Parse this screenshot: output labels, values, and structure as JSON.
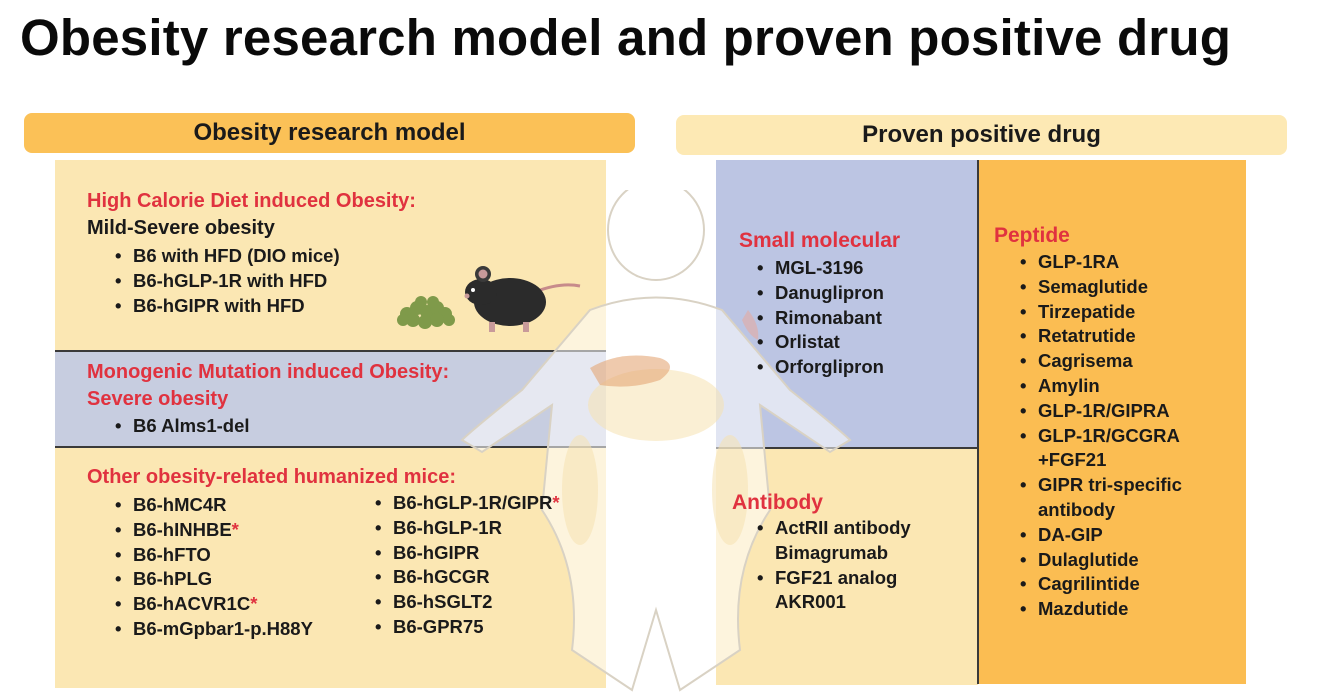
{
  "title": "Obesity research model and proven positive drug",
  "left_header": "Obesity research model",
  "right_header": "Proven positive drug",
  "hcd": {
    "heading": "High Calorie Diet induced Obesity:",
    "subheading": "Mild-Severe obesity",
    "items": [
      "B6 with HFD (DIO mice)",
      "B6-hGLP-1R with HFD",
      "B6-hGIPR with HFD"
    ]
  },
  "mono": {
    "heading": "Monogenic Mutation induced Obesity:",
    "subheading": "Severe obesity",
    "items": [
      "B6 Alms1-del"
    ]
  },
  "other": {
    "heading": "Other obesity-related humanized mice:",
    "col1": [
      {
        "text": "B6-hMC4R",
        "star": ""
      },
      {
        "text": "B6-hINHBE",
        "star": "*"
      },
      {
        "text": "B6-hFTO",
        "star": ""
      },
      {
        "text": "B6-hPLG",
        "star": ""
      },
      {
        "text": "B6-hACVR1C",
        "star": "*"
      },
      {
        "text": "B6-mGpbar1-p.H88Y",
        "star": ""
      }
    ],
    "col2": [
      {
        "text": "B6-hGLP-1R/GIPR",
        "star": "*"
      },
      {
        "text": "B6-hGLP-1R",
        "star": ""
      },
      {
        "text": "B6-hGIPR",
        "star": ""
      },
      {
        "text": "B6-hGCGR",
        "star": ""
      },
      {
        "text": "B6-hSGLT2",
        "star": ""
      },
      {
        "text": "B6-GPR75",
        "star": ""
      }
    ]
  },
  "small": {
    "heading": "Small molecular",
    "items": [
      "MGL-3196",
      "Danuglipron",
      "Rimonabant",
      "Orlistat",
      "Orforglipron"
    ]
  },
  "antibody": {
    "heading": "Antibody",
    "items": [
      {
        "line1": "ActRII  antibody",
        "line2": "Bimagrumab"
      },
      {
        "line1": "FGF21 analog",
        "line2": "AKR001"
      }
    ]
  },
  "peptide": {
    "heading": "Peptide",
    "items": [
      {
        "line1": "GLP-1RA",
        "line2": ""
      },
      {
        "line1": "Semaglutide",
        "line2": ""
      },
      {
        "line1": "Tirzepatide",
        "line2": ""
      },
      {
        "line1": "Retatrutide",
        "line2": ""
      },
      {
        "line1": "Cagrisema",
        "line2": ""
      },
      {
        "line1": "Amylin",
        "line2": ""
      },
      {
        "line1": "GLP-1R/GIPRA",
        "line2": ""
      },
      {
        "line1": "GLP-1R/GCGRA",
        "line2": "+FGF21"
      },
      {
        "line1": "GIPR tri-specific",
        "line2": "antibody"
      },
      {
        "line1": "DA-GIP",
        "line2": ""
      },
      {
        "line1": "Dulaglutide",
        "line2": ""
      },
      {
        "line1": "Cagrilintide",
        "line2": ""
      },
      {
        "line1": "Mazdutide",
        "line2": ""
      }
    ]
  },
  "colors": {
    "accent_red": "#e0323f",
    "header_left": "#fbc157",
    "header_right": "#fde9b4",
    "panel_cream": "#fbe7b3",
    "panel_blue": "#c7cde0",
    "panel_orange": "#fbbd52"
  }
}
